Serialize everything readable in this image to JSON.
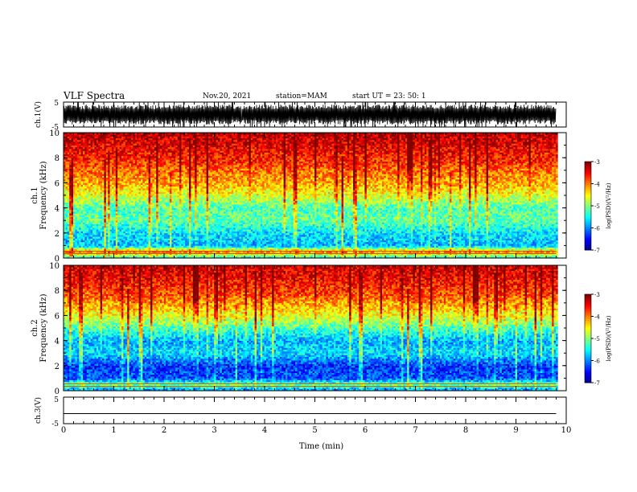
{
  "header": {
    "title": "VLF Spectra",
    "date": "Nov.20, 2021",
    "station": "station=MAM",
    "start": "start UT = 23: 50: 1"
  },
  "chart_data": [
    {
      "type": "line",
      "name": "ch1-waveform",
      "ylabel": "ch.1(V)",
      "ylim": [
        -5,
        5
      ],
      "yticks": [
        "5",
        "-5"
      ],
      "xlim": [
        0,
        10
      ],
      "x_extent": [
        0,
        9.8
      ],
      "description_values": {
        "typical_amplitude": [
          -3.5,
          3.5
        ],
        "baseline": 0
      }
    },
    {
      "type": "heatmap",
      "name": "ch1-spectrogram",
      "ylabel": "ch.1\nFrequency (kHz)",
      "ylim": [
        0,
        10
      ],
      "yticks": [
        0,
        2,
        4,
        6,
        8,
        10
      ],
      "xlim": [
        0,
        10
      ],
      "x_extent": [
        0,
        9.8
      ],
      "colorbar": {
        "label": "log(PSD)(V²/Hz)",
        "range": [
          -7,
          -3
        ],
        "ticks": [
          -3,
          -4,
          -5,
          -6,
          -7
        ]
      },
      "profile_khz_to_logpsd": [
        [
          0,
          -5.5
        ],
        [
          0.5,
          -4.0
        ],
        [
          1,
          -5.8
        ],
        [
          2,
          -5.6
        ],
        [
          3,
          -5.1
        ],
        [
          4,
          -5.2
        ],
        [
          5,
          -4.6
        ],
        [
          6,
          -4.2
        ],
        [
          7,
          -3.9
        ],
        [
          8,
          -3.6
        ],
        [
          9,
          -3.4
        ],
        [
          10,
          -3.2
        ]
      ]
    },
    {
      "type": "heatmap",
      "name": "ch2-spectrogram",
      "ylabel": "ch.2\nFrequency (kHz)",
      "ylim": [
        0,
        10
      ],
      "yticks": [
        0,
        2,
        4,
        6,
        8,
        10
      ],
      "xlim": [
        0,
        10
      ],
      "x_extent": [
        0,
        9.8
      ],
      "colorbar": {
        "label": "log(PSD)(V²/Hz)",
        "range": [
          -7,
          -3
        ],
        "ticks": [
          -3,
          -4,
          -5,
          -6,
          -7
        ]
      },
      "profile_khz_to_logpsd": [
        [
          0,
          -6.0
        ],
        [
          0.5,
          -5.0
        ],
        [
          1,
          -6.2
        ],
        [
          2,
          -6.3
        ],
        [
          3,
          -5.6
        ],
        [
          4,
          -5.8
        ],
        [
          5,
          -5.2
        ],
        [
          6,
          -4.6
        ],
        [
          7,
          -4.1
        ],
        [
          8,
          -3.7
        ],
        [
          9,
          -3.5
        ],
        [
          10,
          -3.3
        ]
      ]
    },
    {
      "type": "line",
      "name": "ch3-waveform",
      "ylabel": "ch.3(V)",
      "ylim": [
        -5,
        5
      ],
      "yticks": [
        "5",
        "-5"
      ],
      "xlim": [
        0,
        10
      ],
      "x_extent": [
        0,
        9.8
      ],
      "values_constant": -1.2
    }
  ],
  "xaxis": {
    "label": "Time (min)",
    "ticks": [
      0,
      1,
      2,
      3,
      4,
      5,
      6,
      7,
      8,
      9,
      10
    ]
  }
}
